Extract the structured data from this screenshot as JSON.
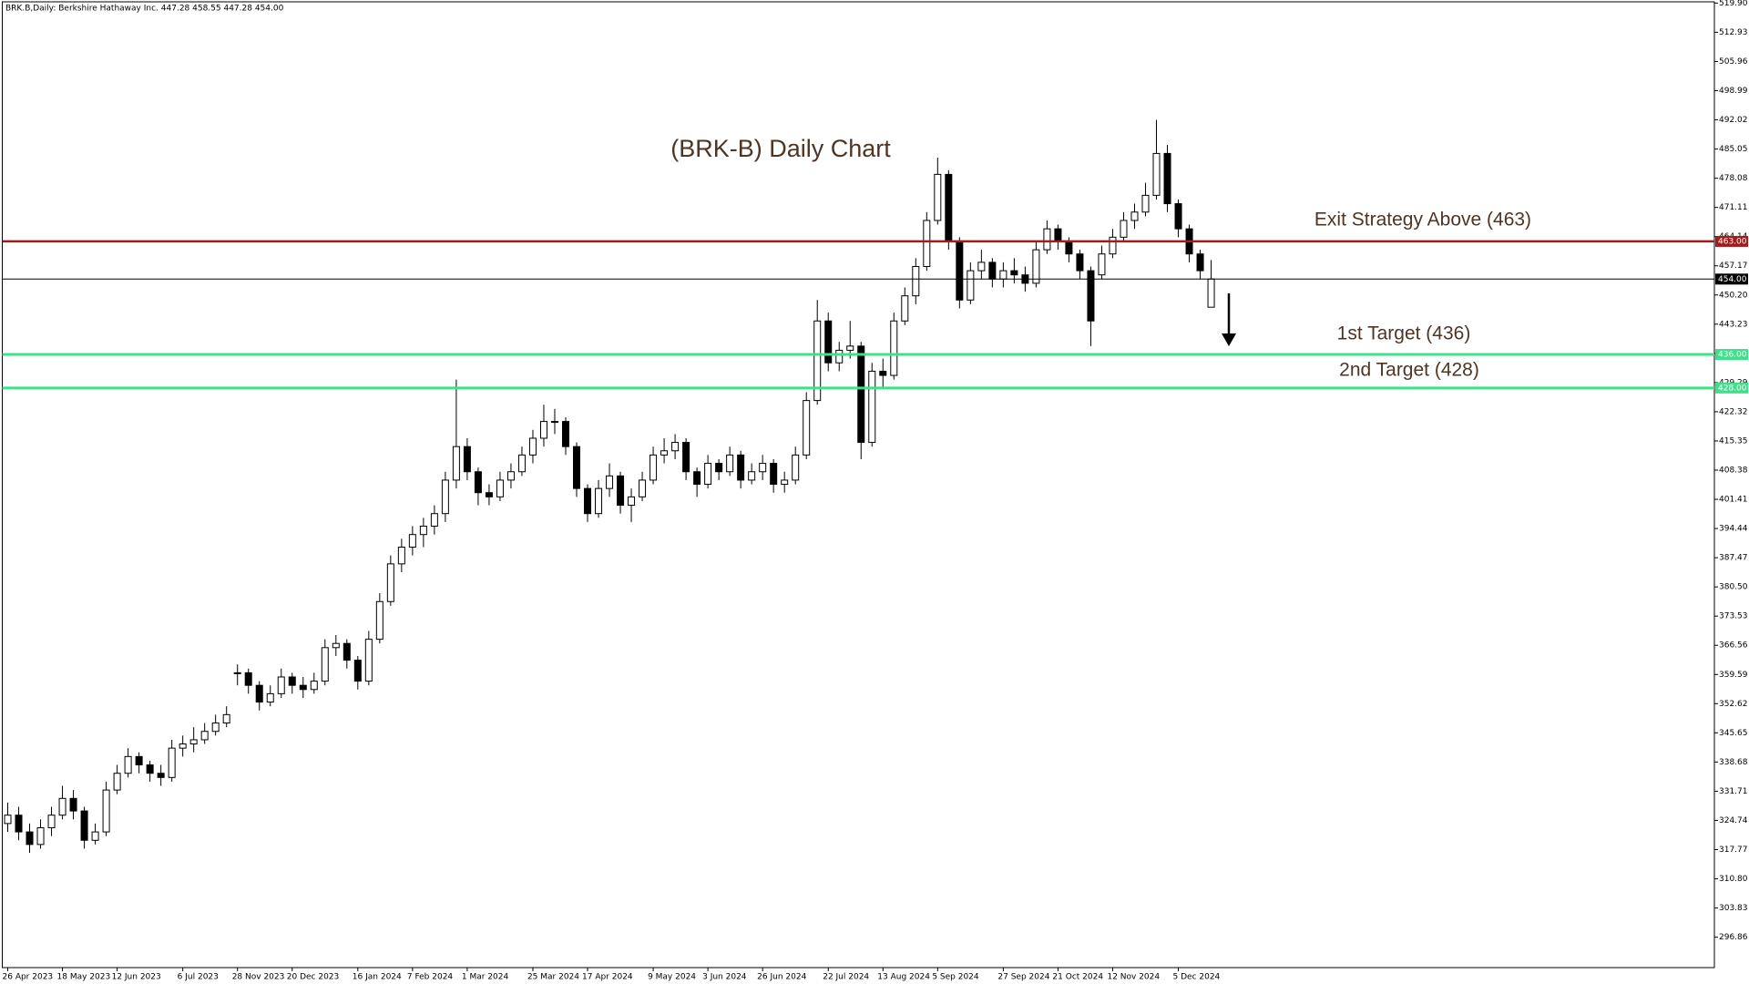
{
  "chart_data": {
    "type": "candlestick",
    "header": "BRK.B,Daily:  Berkshire Hathaway Inc.  447.28 458.55 447.28 454.00",
    "candles": [
      [
        324,
        329,
        322,
        326
      ],
      [
        326,
        328,
        320,
        322
      ],
      [
        322,
        324,
        317,
        319
      ],
      [
        319,
        325,
        318,
        323
      ],
      [
        323,
        328,
        321,
        326
      ],
      [
        326,
        333,
        325,
        330
      ],
      [
        330,
        332,
        325,
        327
      ],
      [
        327,
        328,
        318,
        320
      ],
      [
        320,
        324,
        319,
        322
      ],
      [
        322,
        334,
        321,
        332
      ],
      [
        332,
        338,
        331,
        336
      ],
      [
        336,
        342,
        335,
        340
      ],
      [
        340,
        341,
        336,
        338
      ],
      [
        338,
        339,
        334,
        336
      ],
      [
        336,
        338,
        333,
        335
      ],
      [
        335,
        344,
        334,
        342
      ],
      [
        342,
        345,
        340,
        343
      ],
      [
        343,
        347,
        341,
        344
      ],
      [
        344,
        348,
        343,
        346
      ],
      [
        346,
        350,
        345,
        348
      ],
      [
        348,
        352,
        347,
        350
      ],
      [
        360,
        362,
        357,
        360
      ],
      [
        360,
        361,
        355,
        357
      ],
      [
        357,
        358,
        351,
        353
      ],
      [
        353,
        357,
        352,
        355
      ],
      [
        355,
        361,
        354,
        359
      ],
      [
        359,
        360,
        355,
        357
      ],
      [
        357,
        359,
        354,
        356
      ],
      [
        356,
        360,
        355,
        358
      ],
      [
        358,
        368,
        357,
        366
      ],
      [
        366,
        369,
        364,
        367
      ],
      [
        367,
        368,
        361,
        363
      ],
      [
        363,
        364,
        356,
        358
      ],
      [
        358,
        370,
        357,
        368
      ],
      [
        368,
        379,
        367,
        377
      ],
      [
        377,
        388,
        376,
        386
      ],
      [
        386,
        392,
        384,
        390
      ],
      [
        390,
        395,
        388,
        393
      ],
      [
        393,
        397,
        390,
        395
      ],
      [
        395,
        400,
        393,
        398
      ],
      [
        398,
        408,
        396,
        406
      ],
      [
        406,
        430,
        404,
        414
      ],
      [
        414,
        416,
        406,
        408
      ],
      [
        408,
        409,
        400,
        403
      ],
      [
        403,
        405,
        400,
        402
      ],
      [
        402,
        408,
        401,
        406
      ],
      [
        406,
        410,
        404,
        408
      ],
      [
        408,
        414,
        407,
        412
      ],
      [
        412,
        418,
        410,
        416
      ],
      [
        416,
        424,
        414,
        420
      ],
      [
        420,
        423,
        417,
        420
      ],
      [
        420,
        421,
        412,
        414
      ],
      [
        414,
        415,
        402,
        404
      ],
      [
        404,
        405,
        396,
        398
      ],
      [
        398,
        406,
        397,
        404
      ],
      [
        404,
        410,
        402,
        407
      ],
      [
        407,
        408,
        398,
        400
      ],
      [
        400,
        404,
        396,
        402
      ],
      [
        402,
        408,
        401,
        406
      ],
      [
        406,
        414,
        405,
        412
      ],
      [
        412,
        416,
        410,
        413
      ],
      [
        413,
        417,
        411,
        415
      ],
      [
        415,
        416,
        406,
        408
      ],
      [
        408,
        409,
        402,
        405
      ],
      [
        405,
        412,
        404,
        410
      ],
      [
        410,
        411,
        406,
        408
      ],
      [
        408,
        414,
        407,
        412
      ],
      [
        412,
        413,
        404,
        406
      ],
      [
        406,
        410,
        405,
        408
      ],
      [
        408,
        412,
        406,
        410
      ],
      [
        410,
        411,
        403,
        405
      ],
      [
        405,
        408,
        403,
        406
      ],
      [
        406,
        414,
        405,
        412
      ],
      [
        412,
        427,
        411,
        425
      ],
      [
        425,
        449,
        424,
        444
      ],
      [
        444,
        446,
        432,
        434
      ],
      [
        434,
        439,
        432,
        437
      ],
      [
        437,
        444,
        435,
        438
      ],
      [
        438,
        439,
        411,
        415
      ],
      [
        415,
        434,
        414,
        432
      ],
      [
        432,
        435,
        428,
        431
      ],
      [
        431,
        446,
        430,
        444
      ],
      [
        444,
        452,
        443,
        450
      ],
      [
        450,
        459,
        448,
        457
      ],
      [
        457,
        470,
        456,
        468
      ],
      [
        468,
        483,
        467,
        479
      ],
      [
        479,
        480,
        461,
        463
      ],
      [
        463,
        464,
        447,
        449
      ],
      [
        449,
        458,
        448,
        456
      ],
      [
        456,
        461,
        454,
        458
      ],
      [
        458,
        459,
        452,
        454
      ],
      [
        454,
        458,
        452,
        456
      ],
      [
        456,
        459,
        453,
        455
      ],
      [
        455,
        457,
        451,
        453
      ],
      [
        453,
        463,
        452,
        461
      ],
      [
        461,
        468,
        460,
        466
      ],
      [
        466,
        467,
        461,
        463
      ],
      [
        463,
        464,
        458,
        460
      ],
      [
        460,
        461,
        454,
        456
      ],
      [
        456,
        457,
        438,
        444
      ],
      [
        455,
        462,
        454,
        460
      ],
      [
        460,
        466,
        459,
        464
      ],
      [
        464,
        470,
        463,
        468
      ],
      [
        468,
        472,
        466,
        470
      ],
      [
        470,
        477,
        469,
        474
      ],
      [
        474,
        492,
        473,
        484
      ],
      [
        484,
        486,
        470,
        472
      ],
      [
        472,
        473,
        464,
        466
      ],
      [
        466,
        467,
        458,
        460
      ],
      [
        460,
        461,
        454,
        456
      ],
      [
        447.28,
        458.55,
        447.28,
        454.0
      ]
    ],
    "xlim": [
      -0.5,
      156
    ],
    "xticks": [
      {
        "value": 0,
        "label": "26 Apr 2023"
      },
      {
        "value": 5,
        "label": "18 May 2023"
      },
      {
        "value": 10,
        "label": "12 Jun 2023"
      },
      {
        "value": 16,
        "label": "6 Jul 2023"
      },
      {
        "value": 21,
        "label": "28 Nov 2023"
      },
      {
        "value": 26,
        "label": "20 Dec 2023"
      },
      {
        "value": 32,
        "label": "16 Jan 2024"
      },
      {
        "value": 37,
        "label": "7 Feb 2024"
      },
      {
        "value": 42,
        "label": "1 Mar 2024"
      },
      {
        "value": 48,
        "label": "25 Mar 2024"
      },
      {
        "value": 53,
        "label": "17 Apr 2024"
      },
      {
        "value": 59,
        "label": "9 May 2024"
      },
      {
        "value": 64,
        "label": "3 Jun 2024"
      },
      {
        "value": 69,
        "label": "26 Jun 2024"
      },
      {
        "value": 75,
        "label": "22 Jul 2024"
      },
      {
        "value": 80,
        "label": "13 Aug 2024"
      },
      {
        "value": 85,
        "label": "5 Sep 2024"
      },
      {
        "value": 91,
        "label": "27 Sep 2024"
      },
      {
        "value": 96,
        "label": "21 Oct 2024"
      },
      {
        "value": 101,
        "label": "12 Nov 2024"
      },
      {
        "value": 107,
        "label": "5 Dec 2024"
      }
    ],
    "ylim": [
      289.6,
      520.2
    ],
    "yticks": [
      {
        "value": 519.9,
        "label": "519.90"
      },
      {
        "value": 512.93,
        "label": "512.93"
      },
      {
        "value": 505.96,
        "label": "505.96"
      },
      {
        "value": 498.99,
        "label": "498.99"
      },
      {
        "value": 492.02,
        "label": "492.02"
      },
      {
        "value": 485.05,
        "label": "485.05"
      },
      {
        "value": 478.08,
        "label": "478.08"
      },
      {
        "value": 471.11,
        "label": "471.11"
      },
      {
        "value": 464.14,
        "label": "464.14"
      },
      {
        "value": 457.17,
        "label": "457.17"
      },
      {
        "value": 450.2,
        "label": "450.20"
      },
      {
        "value": 443.23,
        "label": "443.23"
      },
      {
        "value": 436.26,
        "label": "436.26"
      },
      {
        "value": 429.29,
        "label": "429.29"
      },
      {
        "value": 422.32,
        "label": "422.32"
      },
      {
        "value": 415.35,
        "label": "415.35"
      },
      {
        "value": 408.38,
        "label": "408.38"
      },
      {
        "value": 401.41,
        "label": "401.41"
      },
      {
        "value": 394.44,
        "label": "394.44"
      },
      {
        "value": 387.47,
        "label": "387.47"
      },
      {
        "value": 380.5,
        "label": "380.50"
      },
      {
        "value": 373.53,
        "label": "373.53"
      },
      {
        "value": 366.56,
        "label": "366.56"
      },
      {
        "value": 359.59,
        "label": "359.59"
      },
      {
        "value": 352.62,
        "label": "352.62"
      },
      {
        "value": 345.65,
        "label": "345.65"
      },
      {
        "value": 338.68,
        "label": "338.68"
      },
      {
        "value": 331.71,
        "label": "331.71"
      },
      {
        "value": 324.74,
        "label": "324.74"
      },
      {
        "value": 317.77,
        "label": "317.77"
      },
      {
        "value": 310.8,
        "label": "310.80"
      },
      {
        "value": 303.83,
        "label": "303.83"
      },
      {
        "value": 296.86,
        "label": "296.86"
      }
    ],
    "levels": [
      {
        "value": 463,
        "label": "463.00",
        "color": "#a31c1c",
        "width": 2.5
      },
      {
        "value": 454,
        "label": "454.00",
        "color": "#000000",
        "width": 1
      },
      {
        "value": 436,
        "label": "436.00",
        "color": "#3ee08a",
        "width": 3
      },
      {
        "value": 428,
        "label": "428.00",
        "color": "#3ee08a",
        "width": 3
      }
    ],
    "annotations": [
      "(BRK-B) Daily Chart",
      "Exit Strategy Above (463)",
      "1st Target (436)",
      "2nd Target (428)"
    ]
  }
}
